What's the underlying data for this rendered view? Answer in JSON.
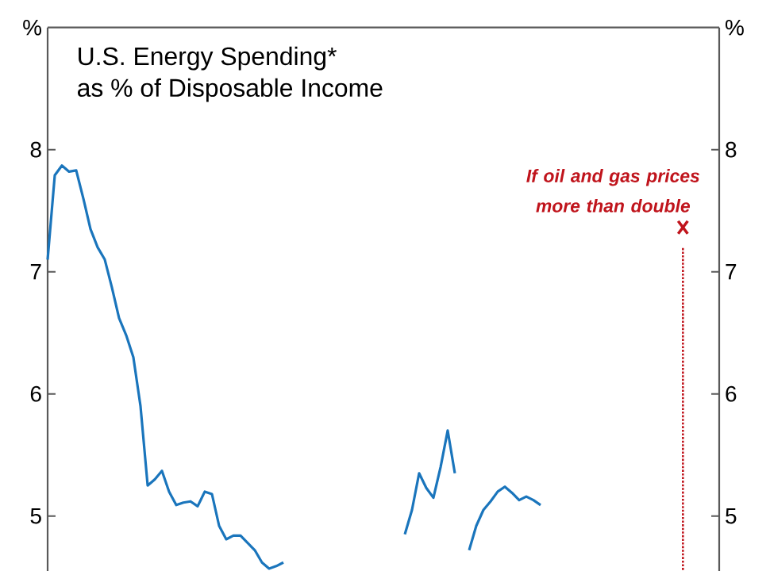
{
  "chart_data": {
    "type": "line",
    "title": "U.S. Energy Spending*",
    "subtitle": "as % of Disposable Income",
    "ylabel": "%",
    "y2label": "%",
    "annotations": [
      "If oil and gas prices more than double"
    ],
    "categories": [
      null,
      null,
      null,
      null,
      null,
      null,
      null,
      null,
      null,
      null,
      null,
      null,
      null,
      null,
      null,
      null,
      null,
      null,
      null,
      null,
      null,
      null,
      null,
      null,
      null,
      null,
      null,
      null,
      null,
      null,
      null,
      null,
      null,
      null,
      null,
      null,
      null,
      null,
      null,
      null,
      null,
      null,
      null,
      null,
      null,
      null,
      null,
      null,
      null,
      null,
      null,
      null,
      null,
      null,
      null,
      null,
      null,
      null,
      null,
      null,
      null,
      null,
      null,
      null,
      null,
      null,
      null,
      null,
      null,
      null,
      null,
      null,
      null,
      null,
      null,
      null,
      null,
      null,
      null,
      null,
      null,
      null,
      null,
      null,
      null,
      null,
      null,
      null,
      null,
      null,
      null,
      null,
      null,
      null,
      null
    ],
    "series": [
      {
        "color": "#1a75bc",
        "values": [
          7.1,
          7.79,
          7.87,
          7.82,
          7.83,
          7.6,
          7.35,
          7.2,
          7.1,
          6.87,
          6.62,
          6.48,
          6.3,
          5.9,
          5.25,
          5.3,
          5.37,
          5.2,
          5.09,
          5.11,
          5.12,
          5.08,
          5.2,
          5.18,
          4.92,
          4.81,
          4.84,
          4.84,
          4.78,
          4.72,
          4.62,
          4.57,
          4.59,
          4.62,
          null,
          null,
          null,
          null,
          null,
          null,
          null,
          null,
          null,
          null,
          null,
          null,
          null,
          null,
          null,
          null,
          4.85,
          5.05,
          5.35,
          5.23,
          5.15,
          5.4,
          5.7,
          5.35,
          null,
          4.72,
          4.92,
          5.05,
          5.12,
          5.2,
          5.24,
          5.19,
          5.13,
          5.16,
          5.13,
          5.09,
          null,
          null,
          null,
          null,
          null,
          null,
          null,
          null,
          null,
          null,
          null,
          null,
          null,
          null,
          null,
          null,
          null,
          null,
          null,
          null,
          null,
          null,
          null,
          null,
          null
        ]
      }
    ],
    "ylim": [
      4.55,
      9.0
    ],
    "yticks": [
      5,
      6,
      7,
      8
    ],
    "y2lim": [
      4.55,
      9.0
    ],
    "y2ticks": [
      5,
      6,
      7,
      8
    ]
  }
}
